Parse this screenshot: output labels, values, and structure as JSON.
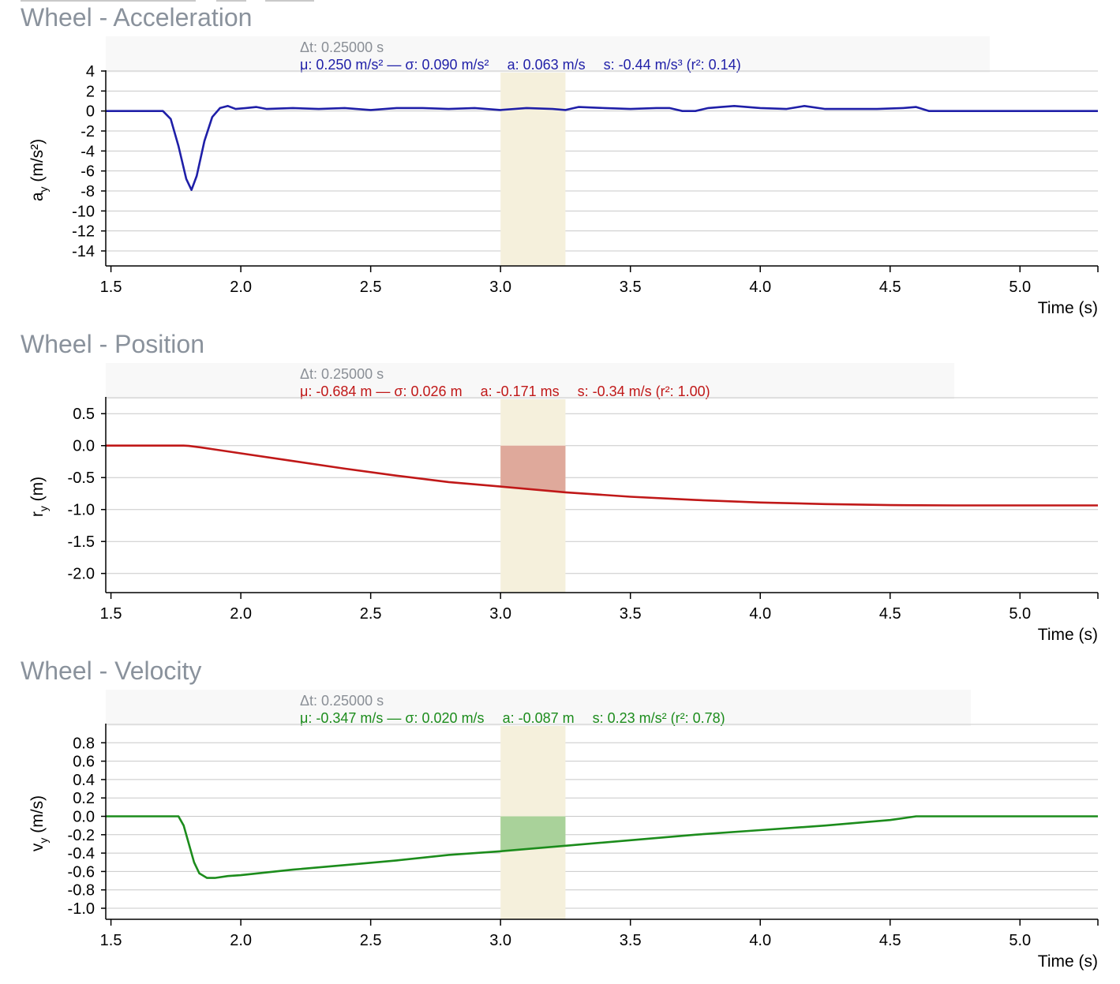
{
  "colors": {
    "acceleration": "#1f1fa8",
    "position": "#c01818",
    "velocity": "#1c8c1c",
    "highlight_band": "#f5f0dc",
    "position_fill": "#dfa99b",
    "velocity_fill": "#a9d29a",
    "title": "#8a929c",
    "grid": "#c8c8c8"
  },
  "chart_data": [
    {
      "type": "line",
      "title": "Wheel - Acceleration",
      "xlabel": "Time (s)",
      "ylabel": "a",
      "ylabel_sub": "y",
      "ylabel_unit": " (m/s²)",
      "xlim": [
        1.48,
        5.3
      ],
      "ylim": [
        -15.5,
        4.0
      ],
      "xticks": [
        1.5,
        2.0,
        2.5,
        3.0,
        3.5,
        4.0,
        4.5,
        5.0
      ],
      "xtick_labels": [
        "1.5",
        "2.0",
        "2.5",
        "3.0",
        "3.5",
        "4.0",
        "4.5",
        "5.0"
      ],
      "yticks": [
        4,
        2,
        0,
        -2,
        -4,
        -6,
        -8,
        -10,
        -12,
        -14
      ],
      "ytick_labels": [
        "4",
        "2",
        "0",
        "-2",
        "-4",
        "-6",
        "-8",
        "-10",
        "-12",
        "-14"
      ],
      "grid": true,
      "highlight": {
        "x0": 3.0,
        "x1": 3.25,
        "fill_to_zero": false
      },
      "info": {
        "dt": "Δt: 0.25000 s",
        "mean": "μ: 0.250 m/s² — σ: 0.090 m/s²",
        "area": "a: 0.063 m/s",
        "slope": "s: -0.44 m/s³ (r²: 0.14)"
      },
      "series": [
        {
          "x": [
            1.48,
            1.7,
            1.73,
            1.76,
            1.79,
            1.81,
            1.83,
            1.86,
            1.89,
            1.92,
            1.95,
            1.98,
            2.02,
            2.06,
            2.1,
            2.2,
            2.3,
            2.4,
            2.5,
            2.6,
            2.7,
            2.8,
            2.9,
            3.0,
            3.1,
            3.2,
            3.25,
            3.3,
            3.4,
            3.5,
            3.6,
            3.65,
            3.7,
            3.75,
            3.8,
            3.85,
            3.9,
            4.0,
            4.1,
            4.17,
            4.25,
            4.35,
            4.45,
            4.55,
            4.6,
            4.65,
            4.7,
            5.3
          ],
          "values": [
            0.0,
            0.0,
            -0.8,
            -3.5,
            -6.8,
            -7.9,
            -6.5,
            -3.0,
            -0.6,
            0.3,
            0.5,
            0.2,
            0.3,
            0.4,
            0.2,
            0.3,
            0.2,
            0.3,
            0.1,
            0.3,
            0.3,
            0.2,
            0.3,
            0.1,
            0.3,
            0.2,
            0.1,
            0.4,
            0.3,
            0.2,
            0.3,
            0.3,
            0.0,
            0.0,
            0.3,
            0.4,
            0.5,
            0.3,
            0.2,
            0.5,
            0.2,
            0.2,
            0.2,
            0.3,
            0.4,
            0.0,
            0.0,
            0.0
          ]
        }
      ]
    },
    {
      "type": "line",
      "title": "Wheel - Position",
      "xlabel": "Time (s)",
      "ylabel": "r",
      "ylabel_sub": "y",
      "ylabel_unit": " (m)",
      "xlim": [
        1.48,
        5.3
      ],
      "ylim": [
        -2.3,
        0.75
      ],
      "xticks": [
        1.5,
        2.0,
        2.5,
        3.0,
        3.5,
        4.0,
        4.5,
        5.0
      ],
      "xtick_labels": [
        "1.5",
        "2.0",
        "2.5",
        "3.0",
        "3.5",
        "4.0",
        "4.5",
        "5.0"
      ],
      "yticks": [
        0.5,
        0.0,
        -0.5,
        -1.0,
        -1.5,
        -2.0
      ],
      "ytick_labels": [
        "0.5",
        "0.0",
        "-0.5",
        "-1.0",
        "-1.5",
        "-2.0"
      ],
      "grid": true,
      "highlight": {
        "x0": 3.0,
        "x1": 3.25,
        "fill_to_zero": true
      },
      "info": {
        "dt": "Δt: 0.25000 s",
        "mean": "μ: -0.684 m — σ: 0.026 m",
        "area": "a: -0.171 ms",
        "slope": "s: -0.34 m/s (r²: 1.00)"
      },
      "series": [
        {
          "x": [
            1.48,
            1.78,
            1.8,
            1.85,
            1.9,
            2.0,
            2.2,
            2.4,
            2.6,
            2.8,
            3.0,
            3.25,
            3.5,
            3.75,
            4.0,
            4.25,
            4.5,
            4.75,
            5.0,
            5.3
          ],
          "values": [
            0.0,
            0.0,
            -0.005,
            -0.03,
            -0.06,
            -0.12,
            -0.24,
            -0.36,
            -0.47,
            -0.57,
            -0.64,
            -0.73,
            -0.8,
            -0.85,
            -0.89,
            -0.915,
            -0.93,
            -0.935,
            -0.935,
            -0.935
          ]
        }
      ]
    },
    {
      "type": "line",
      "title": "Wheel - Velocity",
      "xlabel": "Time (s)",
      "ylabel": "v",
      "ylabel_sub": "y",
      "ylabel_unit": " (m/s)",
      "xlim": [
        1.48,
        5.3
      ],
      "ylim": [
        -1.12,
        1.0
      ],
      "xticks": [
        1.5,
        2.0,
        2.5,
        3.0,
        3.5,
        4.0,
        4.5,
        5.0
      ],
      "xtick_labels": [
        "1.5",
        "2.0",
        "2.5",
        "3.0",
        "3.5",
        "4.0",
        "4.5",
        "5.0"
      ],
      "yticks": [
        0.8,
        0.6,
        0.4,
        0.2,
        0.0,
        -0.2,
        -0.4,
        -0.6,
        -0.8,
        -1.0
      ],
      "ytick_labels": [
        "0.8",
        "0.6",
        "0.4",
        "0.2",
        "0.0",
        "-0.2",
        "-0.4",
        "-0.6",
        "-0.8",
        "-1.0"
      ],
      "grid": true,
      "highlight": {
        "x0": 3.0,
        "x1": 3.25,
        "fill_to_zero": true
      },
      "info": {
        "dt": "Δt: 0.25000 s",
        "mean": "μ: -0.347 m/s — σ: 0.020 m/s",
        "area": "a: -0.087 m",
        "slope": "s: 0.23 m/s² (r²: 0.78)"
      },
      "series": [
        {
          "x": [
            1.48,
            1.76,
            1.78,
            1.8,
            1.82,
            1.84,
            1.87,
            1.9,
            1.95,
            2.0,
            2.1,
            2.2,
            2.4,
            2.6,
            2.8,
            3.0,
            3.25,
            3.5,
            3.75,
            4.0,
            4.25,
            4.5,
            4.6,
            5.3
          ],
          "values": [
            0.0,
            0.0,
            -0.1,
            -0.3,
            -0.5,
            -0.62,
            -0.67,
            -0.67,
            -0.65,
            -0.64,
            -0.61,
            -0.58,
            -0.53,
            -0.48,
            -0.42,
            -0.38,
            -0.32,
            -0.26,
            -0.2,
            -0.15,
            -0.1,
            -0.04,
            0.0,
            0.0
          ]
        }
      ]
    }
  ]
}
